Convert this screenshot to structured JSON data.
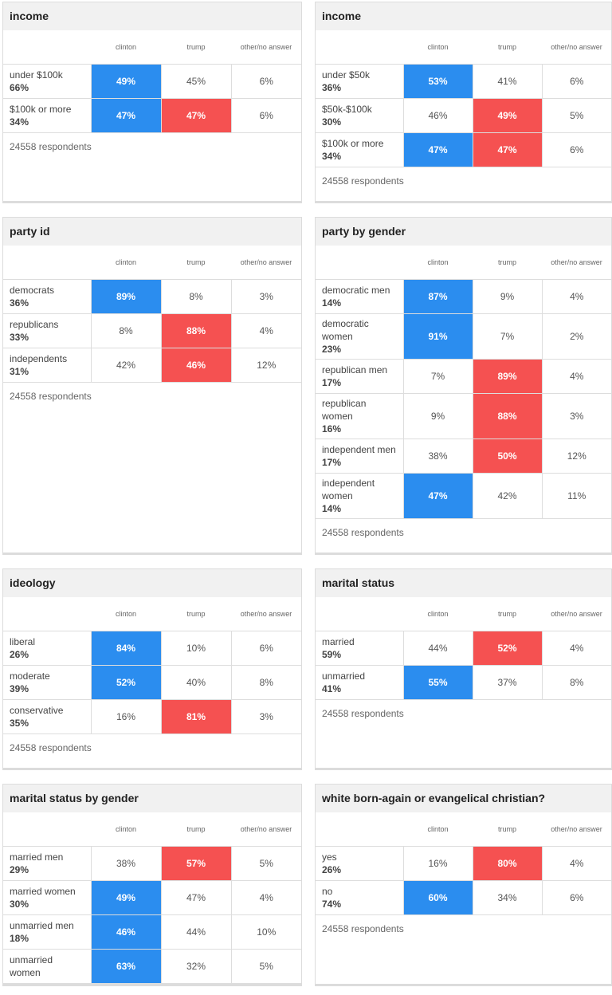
{
  "panels": [
    {
      "title": "income",
      "columns": [
        "clinton",
        "trump",
        "other/no answer"
      ],
      "footer": "24558 respondents",
      "rows": [
        {
          "label": "under $100k",
          "share": "66%",
          "cells": [
            {
              "text": "49%",
              "color": "#2b8def"
            },
            {
              "text": "45%"
            },
            {
              "text": "6%"
            }
          ]
        },
        {
          "label": "$100k or more",
          "share": "34%",
          "cells": [
            {
              "text": "47%",
              "color": "#2b8def"
            },
            {
              "text": "47%",
              "color": "#f55151"
            },
            {
              "text": "6%"
            }
          ]
        }
      ]
    },
    {
      "title": "income",
      "columns": [
        "clinton",
        "trump",
        "other/no answer"
      ],
      "footer": "24558 respondents",
      "rows": [
        {
          "label": "under $50k",
          "share": "36%",
          "cells": [
            {
              "text": "53%",
              "color": "#2b8def"
            },
            {
              "text": "41%"
            },
            {
              "text": "6%"
            }
          ]
        },
        {
          "label": "$50k-$100k",
          "share": "30%",
          "cells": [
            {
              "text": "46%"
            },
            {
              "text": "49%",
              "color": "#f55151"
            },
            {
              "text": "5%"
            }
          ]
        },
        {
          "label": "$100k or more",
          "share": "34%",
          "cells": [
            {
              "text": "47%",
              "color": "#2b8def"
            },
            {
              "text": "47%",
              "color": "#f55151"
            },
            {
              "text": "6%"
            }
          ]
        }
      ]
    },
    {
      "title": "party id",
      "columns": [
        "clinton",
        "trump",
        "other/no answer"
      ],
      "footer": "24558 respondents",
      "rows": [
        {
          "label": "democrats",
          "share": "36%",
          "cells": [
            {
              "text": "89%",
              "color": "#2b8def"
            },
            {
              "text": "8%"
            },
            {
              "text": "3%"
            }
          ]
        },
        {
          "label": "republicans",
          "share": "33%",
          "cells": [
            {
              "text": "8%"
            },
            {
              "text": "88%",
              "color": "#f55151"
            },
            {
              "text": "4%"
            }
          ]
        },
        {
          "label": "independents",
          "share": "31%",
          "cells": [
            {
              "text": "42%"
            },
            {
              "text": "46%",
              "color": "#f55151"
            },
            {
              "text": "12%"
            }
          ]
        }
      ]
    },
    {
      "title": "party by gender",
      "columns": [
        "clinton",
        "trump",
        "other/no answer"
      ],
      "footer": "24558 respondents",
      "rows": [
        {
          "label": "democratic men",
          "share": "14%",
          "cells": [
            {
              "text": "87%",
              "color": "#2b8def"
            },
            {
              "text": "9%"
            },
            {
              "text": "4%"
            }
          ]
        },
        {
          "label": "democratic women",
          "share": "23%",
          "cells": [
            {
              "text": "91%",
              "color": "#2b8def"
            },
            {
              "text": "7%"
            },
            {
              "text": "2%"
            }
          ]
        },
        {
          "label": "republican men",
          "share": "17%",
          "cells": [
            {
              "text": "7%"
            },
            {
              "text": "89%",
              "color": "#f55151"
            },
            {
              "text": "4%"
            }
          ]
        },
        {
          "label": "republican women",
          "share": "16%",
          "cells": [
            {
              "text": "9%"
            },
            {
              "text": "88%",
              "color": "#f55151"
            },
            {
              "text": "3%"
            }
          ]
        },
        {
          "label": "independent men",
          "share": "17%",
          "cells": [
            {
              "text": "38%"
            },
            {
              "text": "50%",
              "color": "#f55151"
            },
            {
              "text": "12%"
            }
          ]
        },
        {
          "label": "independent women",
          "share": "14%",
          "cells": [
            {
              "text": "47%",
              "color": "#2b8def"
            },
            {
              "text": "42%"
            },
            {
              "text": "11%"
            }
          ]
        }
      ]
    },
    {
      "title": "ideology",
      "columns": [
        "clinton",
        "trump",
        "other/no answer"
      ],
      "footer": "24558 respondents",
      "rows": [
        {
          "label": "liberal",
          "share": "26%",
          "cells": [
            {
              "text": "84%",
              "color": "#2b8def"
            },
            {
              "text": "10%"
            },
            {
              "text": "6%"
            }
          ]
        },
        {
          "label": "moderate",
          "share": "39%",
          "cells": [
            {
              "text": "52%",
              "color": "#2b8def"
            },
            {
              "text": "40%"
            },
            {
              "text": "8%"
            }
          ]
        },
        {
          "label": "conservative",
          "share": "35%",
          "cells": [
            {
              "text": "16%"
            },
            {
              "text": "81%",
              "color": "#f55151"
            },
            {
              "text": "3%"
            }
          ]
        }
      ]
    },
    {
      "title": "marital status",
      "columns": [
        "clinton",
        "trump",
        "other/no answer"
      ],
      "footer": "24558 respondents",
      "rows": [
        {
          "label": "married",
          "share": "59%",
          "cells": [
            {
              "text": "44%"
            },
            {
              "text": "52%",
              "color": "#f55151"
            },
            {
              "text": "4%"
            }
          ]
        },
        {
          "label": "unmarried",
          "share": "41%",
          "cells": [
            {
              "text": "55%",
              "color": "#2b8def"
            },
            {
              "text": "37%"
            },
            {
              "text": "8%"
            }
          ]
        }
      ]
    },
    {
      "title": "marital status by gender",
      "columns": [
        "clinton",
        "trump",
        "other/no answer"
      ],
      "rows": [
        {
          "label": "married men",
          "share": "29%",
          "cells": [
            {
              "text": "38%"
            },
            {
              "text": "57%",
              "color": "#f55151"
            },
            {
              "text": "5%"
            }
          ]
        },
        {
          "label": "married women",
          "share": "30%",
          "cells": [
            {
              "text": "49%",
              "color": "#2b8def"
            },
            {
              "text": "47%"
            },
            {
              "text": "4%"
            }
          ]
        },
        {
          "label": "unmarried men",
          "share": "18%",
          "cells": [
            {
              "text": "46%",
              "color": "#2b8def"
            },
            {
              "text": "44%"
            },
            {
              "text": "10%"
            }
          ]
        },
        {
          "label": "unmarried women",
          "cells": [
            {
              "text": "63%",
              "color": "#2b8def"
            },
            {
              "text": "32%"
            },
            {
              "text": "5%"
            }
          ]
        }
      ]
    },
    {
      "title": "white born-again or evangelical christian?",
      "columns": [
        "clinton",
        "trump",
        "other/no answer"
      ],
      "footer": "24558 respondents",
      "rows": [
        {
          "label": "yes",
          "share": "26%",
          "cells": [
            {
              "text": "16%"
            },
            {
              "text": "80%",
              "color": "#f55151"
            },
            {
              "text": "4%"
            }
          ]
        },
        {
          "label": "no",
          "share": "74%",
          "cells": [
            {
              "text": "60%",
              "color": "#2b8def"
            },
            {
              "text": "34%"
            },
            {
              "text": "6%"
            }
          ]
        }
      ]
    }
  ]
}
